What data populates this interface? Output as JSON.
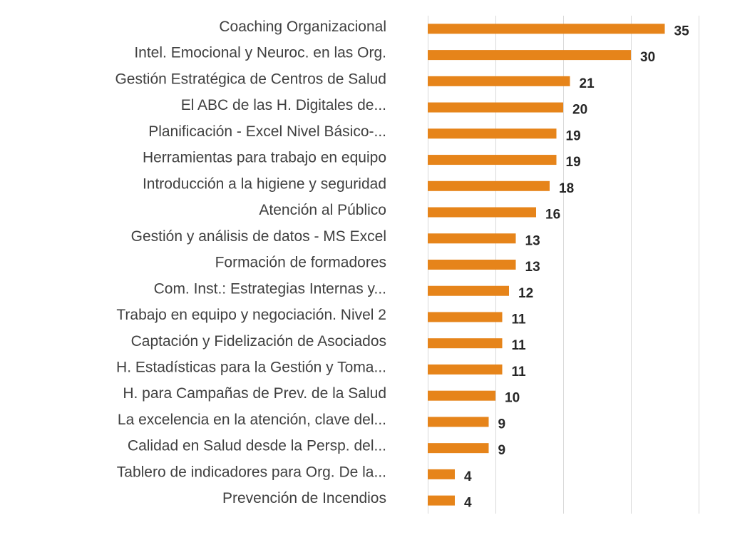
{
  "chart_data": {
    "type": "bar",
    "orientation": "horizontal",
    "categories": [
      "Coaching Organizacional",
      "Intel. Emocional y Neuroc. en las Org.",
      "Gestión Estratégica de Centros de Salud",
      "El ABC de las H. Digitales de...",
      "Planificación - Excel Nivel Básico-...",
      "Herramientas para trabajo en equipo",
      "Introducción a la higiene y seguridad",
      "Atención al Público",
      "Gestión y análisis de datos - MS Excel",
      "Formación de formadores",
      "Com. Inst.: Estrategias Internas y...",
      "Trabajo en equipo y negociación. Nivel 2",
      "Captación y Fidelización de Asociados",
      "H. Estadísticas para la Gestión y Toma...",
      "H. para Campañas de Prev. de la Salud",
      "La excelencia en la atención, clave del...",
      "Calidad en Salud desde la Persp. del...",
      "Tablero de indicadores para Org. De la...",
      "Prevención de Incendios"
    ],
    "values": [
      35,
      30,
      21,
      20,
      19,
      19,
      18,
      16,
      13,
      13,
      12,
      11,
      11,
      11,
      10,
      9,
      9,
      4,
      4
    ],
    "data_labels": [
      "35",
      "30",
      "21",
      "20",
      "19",
      "19",
      "18",
      "16",
      "13",
      "13",
      "12",
      "11",
      "11",
      "11",
      "10",
      "9",
      "9",
      "4",
      "4"
    ],
    "xlim": [
      0,
      40
    ],
    "x_gridlines": [
      0,
      10,
      20,
      30,
      40
    ],
    "grid": true,
    "legend": "none",
    "bar_color": "#e6841a",
    "title": "",
    "xlabel": "",
    "ylabel": ""
  }
}
